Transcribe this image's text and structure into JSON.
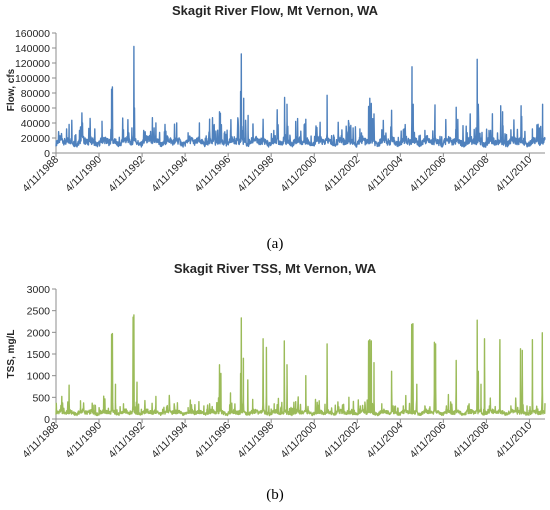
{
  "chart_data": [
    {
      "type": "line",
      "title": "Skagit River Flow, Mt Vernon, WA",
      "xlabel": "",
      "ylabel": "Flow, cfs",
      "ylim": [
        0,
        160000
      ],
      "y_ticks": [
        "0",
        "20000",
        "40000",
        "60000",
        "80000",
        "100000",
        "120000",
        "140000",
        "160000"
      ],
      "x_range": [
        "1988-04-11",
        "2010-12-31"
      ],
      "x_ticks": [
        "4/11/1988",
        "4/11/1990",
        "4/11/1992",
        "4/11/1994",
        "4/11/1996",
        "4/11/1998",
        "4/11/2000",
        "4/11/2002",
        "4/11/2004",
        "4/11/2006",
        "4/11/2008",
        "4/11/2010"
      ],
      "caption": "(a)",
      "color": "#4f81bd",
      "grid": false,
      "series": [
        {
          "baseline": 15000,
          "peaks": [
            [
              "1988-11-20",
              38000
            ],
            [
              "1989-05-15",
              30000
            ],
            [
              "1989-11-10",
              46000
            ],
            [
              "1990-06-01",
              27000
            ],
            [
              "1990-11-11",
              85000
            ],
            [
              "1990-11-25",
              88000
            ],
            [
              "1991-06-01",
              31000
            ],
            [
              "1991-11-24",
              142000
            ],
            [
              "1991-12-05",
              60000
            ],
            [
              "1992-05-20",
              28000
            ],
            [
              "1992-12-01",
              40000
            ],
            [
              "1993-05-20",
              29000
            ],
            [
              "1993-11-20",
              40000
            ],
            [
              "1994-06-01",
              27000
            ],
            [
              "1994-12-10",
              40000
            ],
            [
              "1995-06-01",
              33000
            ],
            [
              "1995-11-15",
              55000
            ],
            [
              "1995-12-01",
              53000
            ],
            [
              "1996-05-20",
              30000
            ],
            [
              "1996-11-08",
              82000
            ],
            [
              "1996-11-20",
              132000
            ],
            [
              "1996-12-30",
              73000
            ],
            [
              "1997-03-15",
              50000
            ],
            [
              "1997-06-05",
              38000
            ],
            [
              "1997-11-25",
              45000
            ],
            [
              "1998-05-25",
              30000
            ],
            [
              "1998-11-25",
              74000
            ],
            [
              "1999-01-05",
              65000
            ],
            [
              "1999-06-01",
              42000
            ],
            [
              "1999-11-20",
              45000
            ],
            [
              "2000-05-20",
              30000
            ],
            [
              "2000-11-15",
              77000
            ],
            [
              "2001-05-20",
              28000
            ],
            [
              "2001-11-20",
              40000
            ],
            [
              "2002-05-25",
              32000
            ],
            [
              "2002-10-20",
              62000
            ],
            [
              "2002-11-10",
              73000
            ],
            [
              "2002-12-05",
              66000
            ],
            [
              "2003-01-20",
              52000
            ],
            [
              "2003-06-01",
              31000
            ],
            [
              "2003-11-15",
              57000
            ],
            [
              "2004-06-01",
              31000
            ],
            [
              "2004-10-25",
              115000
            ],
            [
              "2004-11-15",
              65000
            ],
            [
              "2005-06-01",
              30000
            ],
            [
              "2005-11-20",
              64000
            ],
            [
              "2006-05-25",
              29000
            ],
            [
              "2006-11-15",
              61000
            ],
            [
              "2007-05-20",
              27000
            ],
            [
              "2007-11-07",
              125000
            ],
            [
              "2007-11-25",
              65000
            ],
            [
              "2008-05-25",
              30000
            ],
            [
              "2008-12-10",
              63000
            ],
            [
              "2009-01-10",
              55000
            ],
            [
              "2009-06-01",
              31000
            ],
            [
              "2009-11-20",
              63000
            ],
            [
              "2010-06-01",
              32000
            ],
            [
              "2010-11-20",
              65000
            ],
            [
              "2011-01-10",
              82000
            ]
          ]
        }
      ]
    },
    {
      "type": "line",
      "title": "Skagit River TSS, Mt Vernon, WA",
      "xlabel": "",
      "ylabel": "TSS, mg/L",
      "ylim": [
        0,
        3000
      ],
      "y_ticks": [
        "0",
        "500",
        "1000",
        "1500",
        "2000",
        "2500",
        "3000"
      ],
      "x_range": [
        "1988-04-11",
        "2010-12-31"
      ],
      "x_ticks": [
        "4/11/1988",
        "4/11/1990",
        "4/11/1992",
        "4/11/1994",
        "4/11/1996",
        "4/11/1998",
        "4/11/2000",
        "4/11/2002",
        "4/11/2004",
        "4/11/2006",
        "4/11/2008",
        "4/11/2010"
      ],
      "caption": "(b)",
      "color": "#9bbb59",
      "grid": false,
      "series": [
        {
          "baseline": 150,
          "peaks": [
            [
              "1988-11-20",
              780
            ],
            [
              "1989-06-01",
              420
            ],
            [
              "1990-02-01",
              320
            ],
            [
              "1990-11-11",
              1950
            ],
            [
              "1990-11-25",
              1970
            ],
            [
              "1991-01-15",
              800
            ],
            [
              "1991-06-01",
              350
            ],
            [
              "1991-11-10",
              2350
            ],
            [
              "1991-11-24",
              2400
            ],
            [
              "1992-01-15",
              850
            ],
            [
              "1992-06-01",
              300
            ],
            [
              "1992-12-01",
              520
            ],
            [
              "1993-06-01",
              280
            ],
            [
              "1993-12-01",
              340
            ],
            [
              "1994-06-01",
              260
            ],
            [
              "1994-12-01",
              400
            ],
            [
              "1995-06-01",
              350
            ],
            [
              "1995-11-15",
              1250
            ],
            [
              "1995-12-10",
              1050
            ],
            [
              "1996-05-20",
              600
            ],
            [
              "1996-11-08",
              1050
            ],
            [
              "1996-11-20",
              2330
            ],
            [
              "1996-12-25",
              1400
            ],
            [
              "1997-03-10",
              900
            ],
            [
              "1997-06-01",
              450
            ],
            [
              "1997-11-25",
              1850
            ],
            [
              "1998-01-20",
              1650
            ],
            [
              "1998-06-01",
              350
            ],
            [
              "1998-11-20",
              1800
            ],
            [
              "1999-01-05",
              1250
            ],
            [
              "1999-06-01",
              400
            ],
            [
              "1999-11-20",
              1000
            ],
            [
              "2000-06-01",
              300
            ],
            [
              "2000-11-15",
              1730
            ],
            [
              "2001-06-01",
              280
            ],
            [
              "2001-11-20",
              500
            ],
            [
              "2002-06-01",
              300
            ],
            [
              "2002-10-20",
              1800
            ],
            [
              "2002-11-10",
              1830
            ],
            [
              "2002-12-05",
              1800
            ],
            [
              "2003-01-20",
              1300
            ],
            [
              "2003-06-01",
              350
            ],
            [
              "2003-11-15",
              1100
            ],
            [
              "2004-06-01",
              300
            ],
            [
              "2004-10-20",
              2180
            ],
            [
              "2004-11-10",
              2200
            ],
            [
              "2005-01-15",
              800
            ],
            [
              "2005-06-01",
              300
            ],
            [
              "2005-11-10",
              1770
            ],
            [
              "2005-11-30",
              1730
            ],
            [
              "2006-06-01",
              300
            ],
            [
              "2006-11-15",
              1350
            ],
            [
              "2007-06-01",
              300
            ],
            [
              "2007-11-07",
              2280
            ],
            [
              "2007-11-25",
              1100
            ],
            [
              "2008-01-10",
              800
            ],
            [
              "2008-03-10",
              1850
            ],
            [
              "2008-06-01",
              300
            ],
            [
              "2008-11-25",
              1830
            ],
            [
              "2009-06-01",
              300
            ],
            [
              "2009-11-10",
              1620
            ],
            [
              "2009-12-10",
              1580
            ],
            [
              "2010-03-01",
              300
            ],
            [
              "2010-06-01",
              1830
            ],
            [
              "2010-11-15",
              1990
            ],
            [
              "2011-01-10",
              600
            ],
            [
              "2011-03-10",
              1920
            ]
          ]
        }
      ]
    }
  ]
}
